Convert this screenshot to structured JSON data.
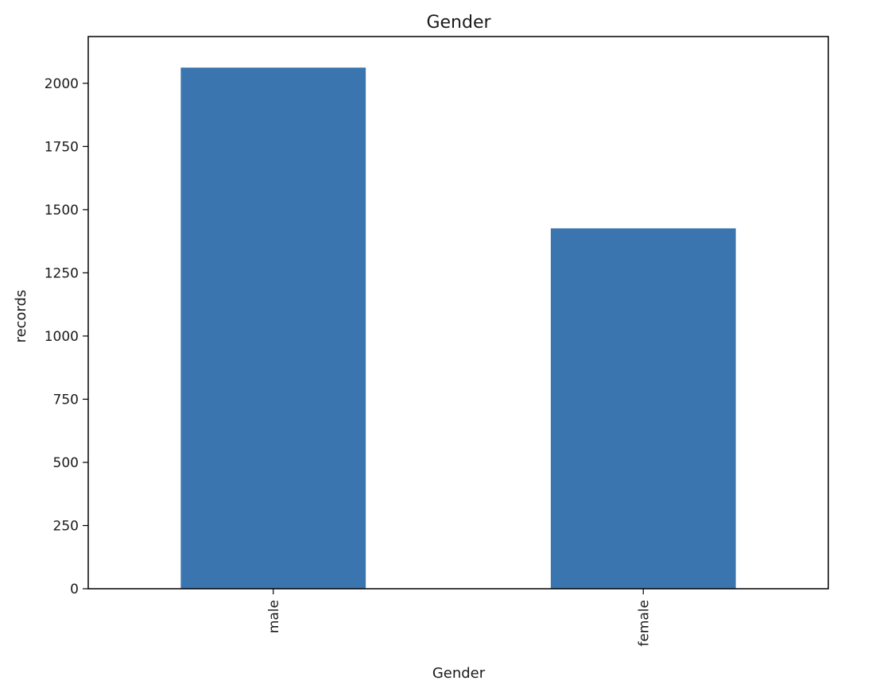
{
  "chart_data": {
    "type": "bar",
    "title": "Gender",
    "xlabel": "Gender",
    "ylabel": "records",
    "categories": [
      "male",
      "female"
    ],
    "values": [
      2062,
      1426
    ],
    "ylim": [
      0,
      2185
    ],
    "yticks": [
      0,
      250,
      500,
      750,
      1000,
      1250,
      1500,
      1750,
      2000
    ],
    "bar_color": "#3a75af",
    "grid": false,
    "legend": "none",
    "xtick_rotation": "vertical"
  }
}
